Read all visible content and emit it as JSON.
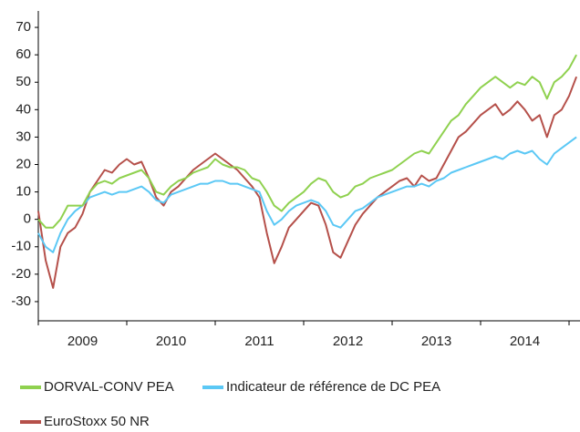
{
  "chart_data": {
    "type": "line",
    "categories": [
      null,
      null,
      null,
      null,
      null,
      null,
      "2009",
      null,
      null,
      null,
      null,
      null,
      null,
      null,
      null,
      null,
      null,
      null,
      "2010",
      null,
      null,
      null,
      null,
      null,
      null,
      null,
      null,
      null,
      null,
      null,
      "2011",
      null,
      null,
      null,
      null,
      null,
      null,
      null,
      null,
      null,
      null,
      null,
      "2012",
      null,
      null,
      null,
      null,
      null,
      null,
      null,
      null,
      null,
      null,
      null,
      "2013",
      null,
      null,
      null,
      null,
      null,
      null,
      null,
      null,
      null,
      null,
      null,
      "2014",
      null,
      null,
      null,
      null,
      null,
      null,
      null
    ],
    "series": [
      {
        "name": "DORVAL-CONV PEA",
        "color": "#8fd14f",
        "values": [
          0,
          -3,
          -3,
          0,
          5,
          5,
          5,
          10,
          13,
          14,
          13,
          15,
          16,
          17,
          18,
          15,
          10,
          9,
          12,
          14,
          15,
          17,
          18,
          19,
          22,
          20,
          19,
          19,
          18,
          15,
          14,
          10,
          5,
          3,
          6,
          8,
          10,
          13,
          15,
          14,
          10,
          8,
          9,
          12,
          13,
          15,
          16,
          17,
          18,
          20,
          22,
          24,
          25,
          24,
          28,
          32,
          36,
          38,
          42,
          45,
          48,
          50,
          52,
          50,
          48,
          50,
          49,
          52,
          50,
          44,
          50,
          52,
          55,
          60
        ]
      },
      {
        "name": "Indicateur de référence de DC PEA",
        "color": "#5bc8f5",
        "values": [
          -5,
          -10,
          -12,
          -5,
          0,
          3,
          5,
          8,
          9,
          10,
          9,
          10,
          10,
          11,
          12,
          10,
          7,
          6,
          9,
          10,
          11,
          12,
          13,
          13,
          14,
          14,
          13,
          13,
          12,
          11,
          10,
          3,
          -2,
          0,
          3,
          5,
          6,
          7,
          6,
          3,
          -2,
          -3,
          0,
          3,
          4,
          6,
          8,
          9,
          10,
          11,
          12,
          12,
          13,
          12,
          14,
          15,
          17,
          18,
          19,
          20,
          21,
          22,
          23,
          22,
          24,
          25,
          24,
          25,
          22,
          20,
          24,
          26,
          28,
          30
        ]
      },
      {
        "name": "EuroStoxx 50 NR",
        "color": "#b5504a",
        "values": [
          3,
          -15,
          -25,
          -10,
          -5,
          -3,
          2,
          10,
          14,
          18,
          17,
          20,
          22,
          20,
          21,
          15,
          8,
          5,
          10,
          12,
          15,
          18,
          20,
          22,
          24,
          22,
          20,
          18,
          15,
          12,
          8,
          -5,
          -16,
          -10,
          -3,
          0,
          3,
          6,
          5,
          -2,
          -12,
          -14,
          -8,
          -2,
          2,
          5,
          8,
          10,
          12,
          14,
          15,
          12,
          16,
          14,
          15,
          20,
          25,
          30,
          32,
          35,
          38,
          40,
          42,
          38,
          40,
          43,
          40,
          36,
          38,
          30,
          38,
          40,
          45,
          52
        ]
      }
    ],
    "ylim": [
      -37,
      76
    ],
    "yticks": [
      -30,
      -20,
      -10,
      0,
      10,
      20,
      30,
      40,
      50,
      60,
      70
    ]
  }
}
